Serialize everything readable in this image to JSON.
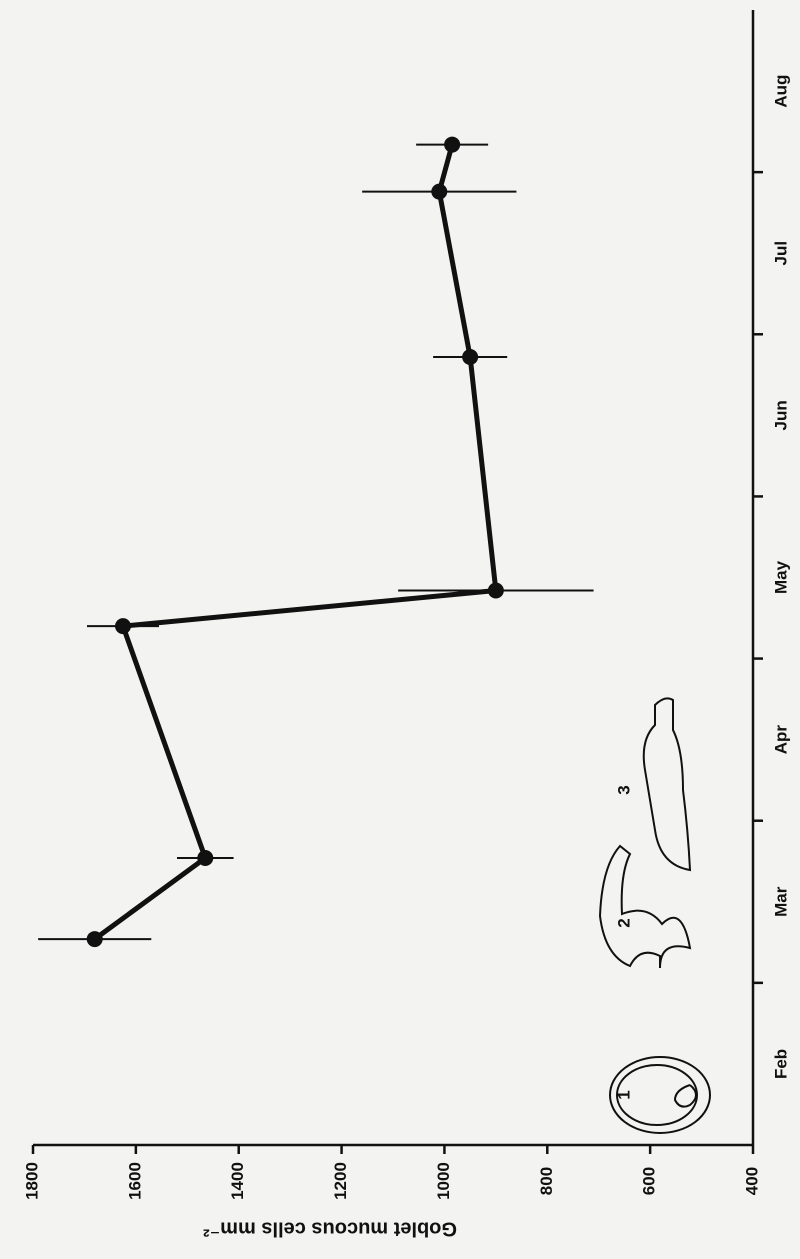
{
  "chart_data": {
    "type": "line",
    "ylabel": "Goblet mucous cells mm⁻²",
    "categories": [
      "Feb",
      "Mar",
      "Apr",
      "May",
      "Jun",
      "Jul",
      "Aug"
    ],
    "xlim": [
      1,
      8
    ],
    "ylim": [
      400,
      1800
    ],
    "yticks": [
      400,
      600,
      800,
      1000,
      1200,
      1400,
      1600,
      1800
    ],
    "series": [
      {
        "color": "#111111",
        "x": [
          2.27,
          2.77,
          4.2,
          4.42,
          5.86,
          6.88,
          7.17
        ],
        "values": [
          1680,
          1465,
          1625,
          900,
          950,
          1010,
          985
        ],
        "errors": [
          110,
          55,
          70,
          190,
          72,
          150,
          70
        ]
      }
    ],
    "annotations": [
      "1",
      "2",
      "3"
    ]
  }
}
